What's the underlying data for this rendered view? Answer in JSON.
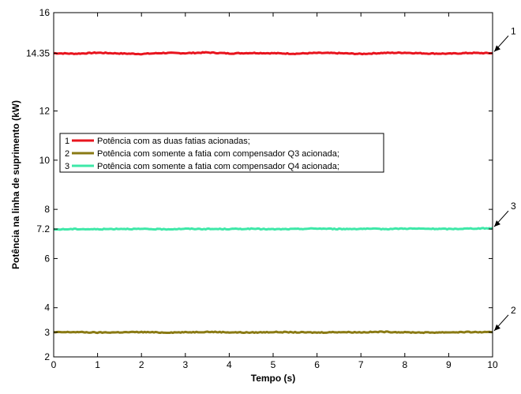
{
  "chart_data": {
    "type": "line",
    "title": "",
    "xlabel": "Tempo (s)",
    "ylabel": "Potência na linha de suprimento (kW)",
    "xlim": [
      0,
      10
    ],
    "ylim": [
      2,
      16
    ],
    "x_ticks": [
      "0",
      "1",
      "2",
      "3",
      "4",
      "5",
      "6",
      "7",
      "8",
      "9",
      "10"
    ],
    "x_tick_values": [
      0,
      1,
      2,
      3,
      4,
      5,
      6,
      7,
      8,
      9,
      10
    ],
    "y_ticks": [
      "2",
      "3",
      "4",
      "6",
      "7.2",
      "8",
      "10",
      "12",
      "14.35",
      "16"
    ],
    "y_tick_values": [
      2,
      3,
      4,
      6,
      7.2,
      8,
      10,
      12,
      14.35,
      16
    ],
    "grid": false,
    "legend_position": "left",
    "x": [
      0,
      0.5,
      1,
      1.5,
      2,
      2.5,
      3,
      3.5,
      4,
      4.5,
      5,
      5.5,
      6,
      6.5,
      7,
      7.5,
      8,
      8.5,
      9,
      9.5,
      10
    ],
    "series": [
      {
        "legend_label": "Potência com as duas fatias acionadas;",
        "legend_number": "1",
        "color": "#e8141e",
        "values": [
          14.35,
          14.33,
          14.37,
          14.34,
          14.32,
          14.36,
          14.35,
          14.38,
          14.34,
          14.36,
          14.35,
          14.33,
          14.36,
          14.35,
          14.32,
          14.36,
          14.37,
          14.34,
          14.33,
          14.36,
          14.35
        ]
      },
      {
        "legend_label": "Potência com somente a fatia com compensador Q3 acionada;",
        "legend_number": "2",
        "color": "#8a7a14",
        "values": [
          3.0,
          3.01,
          2.99,
          3.0,
          3.01,
          2.99,
          3.0,
          3.02,
          3.0,
          2.99,
          3.01,
          3.0,
          2.99,
          3.01,
          3.0,
          3.02,
          3.0,
          2.99,
          3.0,
          3.01,
          3.0
        ]
      },
      {
        "legend_label": "Potência com somente a fatia com compensador Q4 acionada;",
        "legend_number": "3",
        "color": "#3ee8a8",
        "values": [
          7.18,
          7.2,
          7.19,
          7.21,
          7.2,
          7.19,
          7.21,
          7.2,
          7.2,
          7.21,
          7.19,
          7.2,
          7.22,
          7.2,
          7.21,
          7.2,
          7.22,
          7.21,
          7.2,
          7.22,
          7.23
        ]
      }
    ],
    "annotations": [
      {
        "text": "1",
        "series_index": 0
      },
      {
        "text": "3",
        "series_index": 2
      },
      {
        "text": "2",
        "series_index": 1
      }
    ]
  }
}
